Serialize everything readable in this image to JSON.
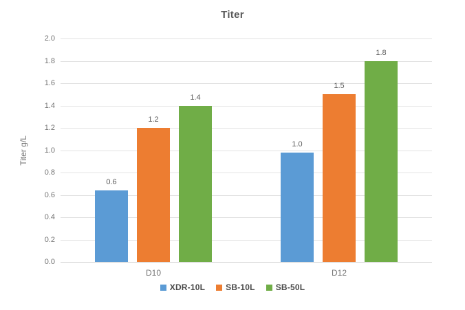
{
  "chart_data": {
    "type": "bar",
    "title": "Titer",
    "ylabel": "Titer g/L",
    "xlabel": "",
    "categories": [
      "D10",
      "D12"
    ],
    "series": [
      {
        "name": "XDR-10L",
        "color": "#5b9bd5",
        "values": [
          0.64,
          0.98
        ],
        "labels": [
          "0.6",
          "1.0"
        ]
      },
      {
        "name": "SB-10L",
        "color": "#ed7d31",
        "values": [
          1.2,
          1.5
        ],
        "labels": [
          "1.2",
          "1.5"
        ]
      },
      {
        "name": "SB-50L",
        "color": "#70ad47",
        "values": [
          1.4,
          1.8
        ],
        "labels": [
          "1.4",
          "1.8"
        ]
      }
    ],
    "ylim": [
      0,
      2
    ],
    "ytick_step": 0.2,
    "yticks": [
      "0.0",
      "0.2",
      "0.4",
      "0.6",
      "0.8",
      "1.0",
      "1.2",
      "1.4",
      "1.6",
      "1.8",
      "2.0"
    ],
    "grid": true,
    "legend_position": "bottom"
  },
  "colors": {
    "title_text": "#595959",
    "axis_text": "#757575",
    "data_label_text": "#595959",
    "legend_text": "#4a4a4a",
    "gridline": "#e2e2e2",
    "baseline": "#d2d2d2",
    "background": "#ffffff"
  }
}
